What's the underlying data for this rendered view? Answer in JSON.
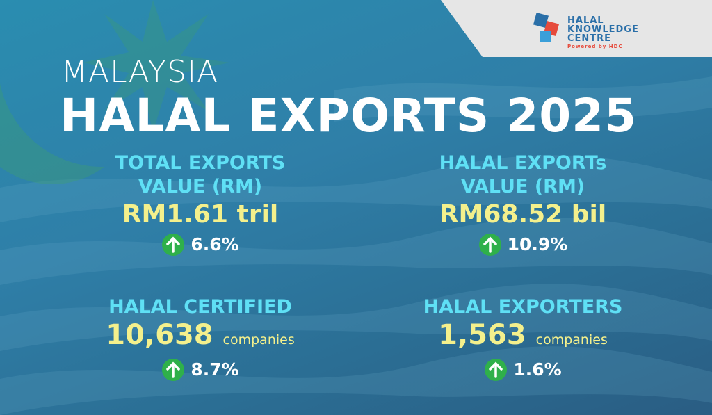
{
  "header": {
    "line1": "MALAYSIA",
    "line2": "HALAL EXPORTS 2025"
  },
  "logo": {
    "line1": "HALAL",
    "line2": "KNOWLEDGE",
    "line3": "CENTRE",
    "tagline": "Powered by HDC"
  },
  "stats": [
    {
      "label": [
        "TOTAL EXPORTS",
        "VALUE (RM)"
      ],
      "value": "RM1.61 tril",
      "change": "6.6%"
    },
    {
      "label": [
        "HALAL EXPORTs",
        "VALUE (RM)"
      ],
      "value": "RM68.52 bil",
      "change": "10.9%"
    },
    {
      "label": [
        "HALAL CERTIFIED"
      ],
      "value": "10,638",
      "unit": "companies",
      "change": "8.7%"
    },
    {
      "label": [
        "HALAL EXPORTERS"
      ],
      "value": "1,563",
      "unit": "companies",
      "change": "1.6%"
    }
  ]
}
